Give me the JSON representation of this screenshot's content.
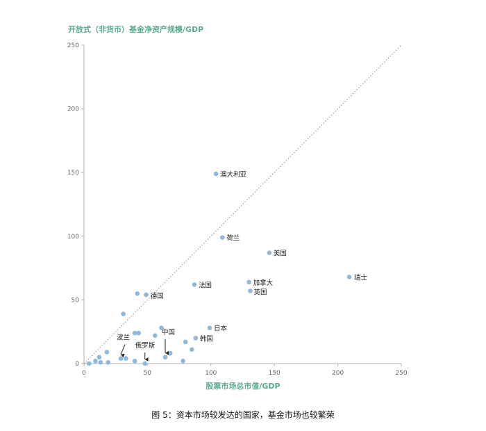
{
  "chart_data": {
    "type": "scatter",
    "title": "开放式（非货币）基金净资产规模/GDP",
    "xlabel": "股票市场总市值/GDP",
    "ylabel": "开放式（非货币）基金净资产规模/GDP",
    "xlim": [
      0,
      250
    ],
    "ylim": [
      0,
      250
    ],
    "xticks": [
      0,
      50,
      100,
      150,
      200,
      250
    ],
    "yticks": [
      0,
      50,
      100,
      150,
      200,
      250
    ],
    "grid": false,
    "reference_line": {
      "from": [
        0,
        0
      ],
      "to": [
        250,
        250
      ],
      "style": "dotted"
    },
    "marker_color": "#8fb8da",
    "axis_color": "#b0b0b0",
    "points": [
      {
        "x": 104,
        "y": 149,
        "label": "澳大利亚"
      },
      {
        "x": 109,
        "y": 99,
        "label": "荷兰"
      },
      {
        "x": 146,
        "y": 87,
        "label": "美国"
      },
      {
        "x": 209,
        "y": 68,
        "label": "瑞士"
      },
      {
        "x": 130,
        "y": 64,
        "label": "加拿大"
      },
      {
        "x": 131,
        "y": 57,
        "label": "英国"
      },
      {
        "x": 87,
        "y": 62,
        "label": "法国"
      },
      {
        "x": 49,
        "y": 54,
        "label": "德国"
      },
      {
        "x": 99,
        "y": 28,
        "label": "日本"
      },
      {
        "x": 88,
        "y": 20,
        "label": "韩国"
      },
      {
        "x": 64,
        "y": 5,
        "label": "中国"
      },
      {
        "x": 29,
        "y": 4,
        "label": "波兰"
      },
      {
        "x": 48,
        "y": 0,
        "label": "俄罗斯"
      },
      {
        "x": 42,
        "y": 55,
        "label": ""
      },
      {
        "x": 31,
        "y": 39,
        "label": ""
      },
      {
        "x": 61,
        "y": 28,
        "label": ""
      },
      {
        "x": 40,
        "y": 24,
        "label": ""
      },
      {
        "x": 43,
        "y": 24,
        "label": ""
      },
      {
        "x": 56,
        "y": 22,
        "label": ""
      },
      {
        "x": 80,
        "y": 17,
        "label": ""
      },
      {
        "x": 85,
        "y": 11,
        "label": ""
      },
      {
        "x": 18,
        "y": 9,
        "label": ""
      },
      {
        "x": 68,
        "y": 8,
        "label": ""
      },
      {
        "x": 12,
        "y": 5,
        "label": ""
      },
      {
        "x": 33,
        "y": 4,
        "label": ""
      },
      {
        "x": 9,
        "y": 2,
        "label": ""
      },
      {
        "x": 13,
        "y": 1,
        "label": ""
      },
      {
        "x": 19,
        "y": 1,
        "label": ""
      },
      {
        "x": 40,
        "y": 2,
        "label": ""
      },
      {
        "x": 78,
        "y": 2,
        "label": ""
      },
      {
        "x": 4,
        "y": 0,
        "label": ""
      }
    ],
    "arrows": [
      "波兰",
      "俄罗斯",
      "中国"
    ]
  },
  "caption": "图 5：资本市场较发达的国家，基金市场也较繁荣"
}
